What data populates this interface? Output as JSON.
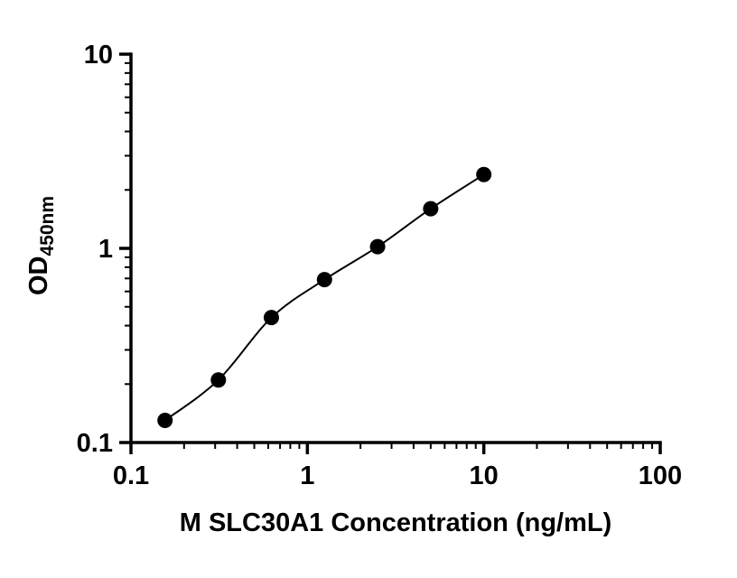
{
  "chart_data": {
    "type": "scatter",
    "title": "",
    "xlabel": "M SLC30A1 Concentration (ng/mL)",
    "ylabel_main": "OD",
    "ylabel_sub": "450nm",
    "x": [
      0.156,
      0.313,
      0.625,
      1.25,
      2.5,
      5,
      10
    ],
    "y": [
      0.13,
      0.21,
      0.44,
      0.69,
      1.02,
      1.6,
      2.4
    ],
    "xscale": "log",
    "yscale": "log",
    "xlim": [
      0.1,
      100
    ],
    "ylim": [
      0.1,
      10
    ],
    "x_tick_values": [
      0.1,
      1,
      10,
      100
    ],
    "x_tick_labels": [
      "0.1",
      "1",
      "10",
      "100"
    ],
    "y_tick_values": [
      0.1,
      1,
      10
    ],
    "y_tick_labels": [
      "0.1",
      "1",
      "10"
    ],
    "grid": false,
    "legend": false,
    "marker_color": "#000000",
    "line_color": "#000000",
    "axis_color": "#000000",
    "background": "#ffffff"
  }
}
